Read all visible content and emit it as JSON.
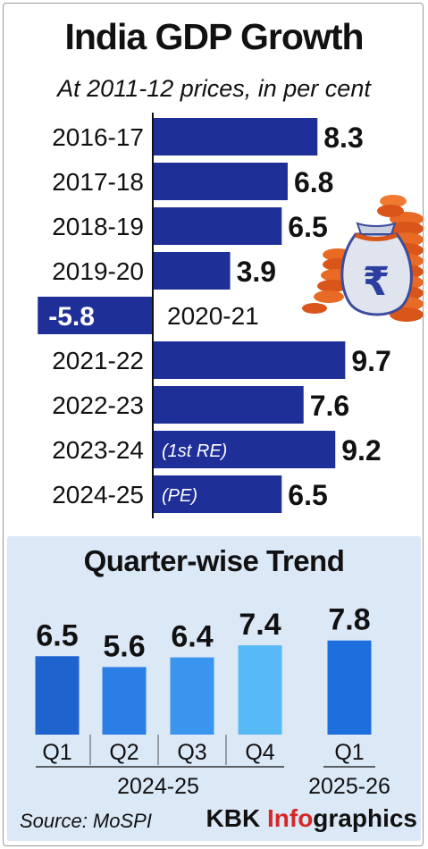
{
  "title": "India GDP Growth",
  "subtitle": "At 2011-12 prices, in per cent",
  "chart_data": [
    {
      "type": "bar",
      "orientation": "horizontal",
      "title": "India GDP Growth",
      "subtitle": "At 2011-12 prices, in per cent",
      "categories": [
        "2016-17",
        "2017-18",
        "2018-19",
        "2019-20",
        "2020-21",
        "2021-22",
        "2022-23",
        "2023-24",
        "2024-25"
      ],
      "values": [
        8.3,
        6.8,
        6.5,
        3.9,
        -5.8,
        9.7,
        7.6,
        9.2,
        6.5
      ],
      "value_labels": [
        "8.3",
        "6.8",
        "6.5",
        "3.9",
        "-5.8",
        "9.7",
        "7.6",
        "9.2",
        "6.5"
      ],
      "notes": [
        "",
        "",
        "",
        "",
        "",
        "",
        "",
        "(1st RE)",
        "(PE)"
      ],
      "bar_color": "#1f2f98",
      "grid": false,
      "legend": false
    },
    {
      "type": "bar",
      "title": "Quarter-wise Trend",
      "categories": [
        "Q1",
        "Q2",
        "Q3",
        "Q4",
        "Q1"
      ],
      "values": [
        6.5,
        5.6,
        6.4,
        7.4,
        7.8
      ],
      "value_labels": [
        "6.5",
        "5.6",
        "6.4",
        "7.4",
        "7.8"
      ],
      "colors": [
        "#1f63cf",
        "#2a7ee6",
        "#3a95ee",
        "#57b9f5",
        "#1c6fdc"
      ],
      "groups": [
        {
          "label": "2024-25",
          "count": 4
        },
        {
          "label": "2025-26",
          "count": 1
        }
      ],
      "grid": false,
      "legend": false
    }
  ],
  "colors": {
    "bar": "#1f2f98",
    "panel": "#dbe8f6",
    "brand_accent": "#d62828"
  },
  "illustration": "rupee-money-bag-icon",
  "footer": {
    "source": "Source: MoSPI",
    "brand_prefix": "KBK ",
    "brand_accent": "Info",
    "brand_suffix": "graphics"
  }
}
